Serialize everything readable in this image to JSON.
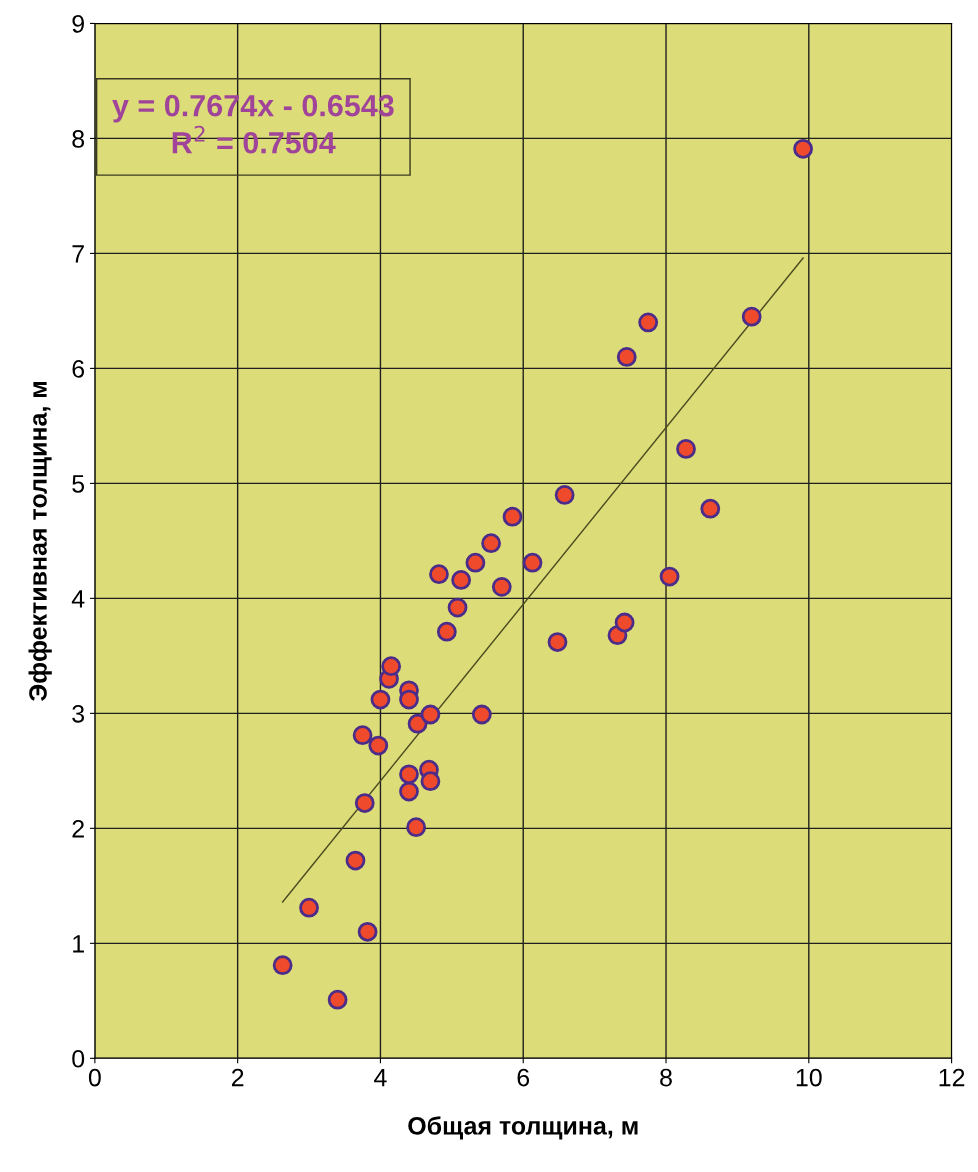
{
  "chart_data": {
    "type": "scatter",
    "xlabel": "Общая толщина, м",
    "ylabel": "Эффективная толщина, м",
    "xlim": [
      0,
      12
    ],
    "ylim": [
      0,
      9
    ],
    "xticks": [
      0,
      2,
      4,
      6,
      8,
      10,
      12
    ],
    "yticks": [
      0,
      1,
      2,
      3,
      4,
      5,
      6,
      7,
      8,
      9
    ],
    "grid": true,
    "marker": "circle",
    "annotations": [
      "y = 0.7674x - 0.6543\nR$^{2}$ = 0.7504"
    ],
    "series": [
      {
        "color": "#f04a2c",
        "x": [
          2.63,
          3.0,
          3.4,
          3.82,
          3.65,
          3.78,
          3.75,
          3.97,
          4.0,
          4.12,
          4.15,
          4.4,
          4.4,
          4.4,
          4.4,
          4.5,
          4.52,
          4.7,
          4.68,
          4.7,
          4.82,
          4.93,
          5.08,
          5.13,
          5.33,
          5.42,
          5.55,
          5.7,
          5.85,
          6.13,
          6.48,
          6.58,
          7.32,
          7.42,
          7.45,
          7.75,
          8.05,
          8.28,
          8.62,
          9.2,
          9.92
        ],
        "values": [
          0.81,
          1.31,
          0.51,
          1.1,
          1.72,
          2.22,
          2.81,
          2.72,
          3.12,
          3.3,
          3.41,
          3.2,
          3.12,
          2.47,
          2.32,
          2.01,
          2.91,
          2.99,
          2.51,
          2.41,
          4.21,
          3.71,
          3.92,
          4.16,
          4.31,
          2.99,
          4.48,
          4.1,
          4.71,
          4.31,
          3.62,
          4.9,
          3.68,
          3.79,
          6.1,
          6.4,
          4.19,
          5.3,
          4.78,
          6.45,
          7.91
        ]
      },
      {
        "type": "line",
        "color": "#4a4a20",
        "x": [
          2.63,
          9.92
        ],
        "values": [
          1.36,
          6.96
        ],
        "marker": "none"
      }
    ]
  }
}
